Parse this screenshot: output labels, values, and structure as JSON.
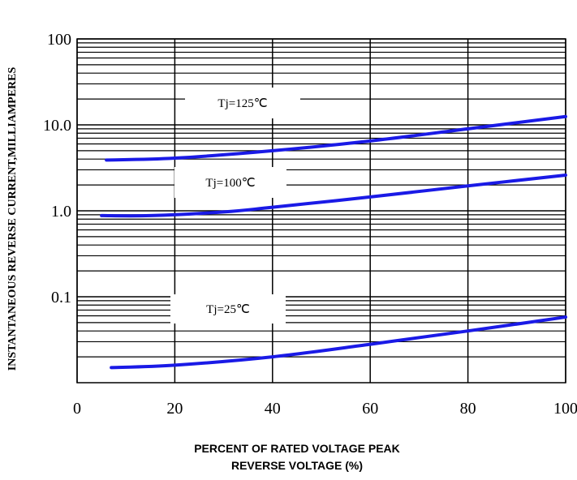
{
  "chart_data": {
    "type": "line",
    "title": "",
    "xlabel_lines": [
      "PERCENT OF RATED VOLTAGE PEAK",
      "REVERSE VOLTAGE (%)"
    ],
    "ylabel": "INSTANTANEOUS REVERSE CURRENT,MILLIAMPERES",
    "xlim": [
      0,
      100
    ],
    "ylim": [
      0.01,
      100
    ],
    "y_scale": "log",
    "grid": true,
    "x_ticks": [
      0,
      20,
      40,
      60,
      80,
      100
    ],
    "x_tick_labels": [
      "0",
      "20",
      "40",
      "60",
      "80",
      "100"
    ],
    "y_ticks": [
      0.1,
      1,
      10,
      100
    ],
    "y_tick_labels": [
      "0.1",
      "1.0",
      "10.0",
      "100"
    ],
    "line_color": "#1a1ae6",
    "series": [
      {
        "name": "Tj=125℃",
        "x": [
          6,
          20,
          40,
          60,
          80,
          100
        ],
        "y": [
          3.9,
          4.1,
          5.0,
          6.5,
          9.0,
          12.5
        ]
      },
      {
        "name": "Tj=100℃",
        "x": [
          5,
          15,
          30,
          40,
          60,
          80,
          100
        ],
        "y": [
          0.88,
          0.88,
          0.97,
          1.1,
          1.45,
          1.95,
          2.6
        ]
      },
      {
        "name": "Tj=25℃",
        "x": [
          7,
          20,
          40,
          60,
          80,
          100
        ],
        "y": [
          0.015,
          0.016,
          0.02,
          0.028,
          0.04,
          0.058
        ]
      }
    ]
  }
}
